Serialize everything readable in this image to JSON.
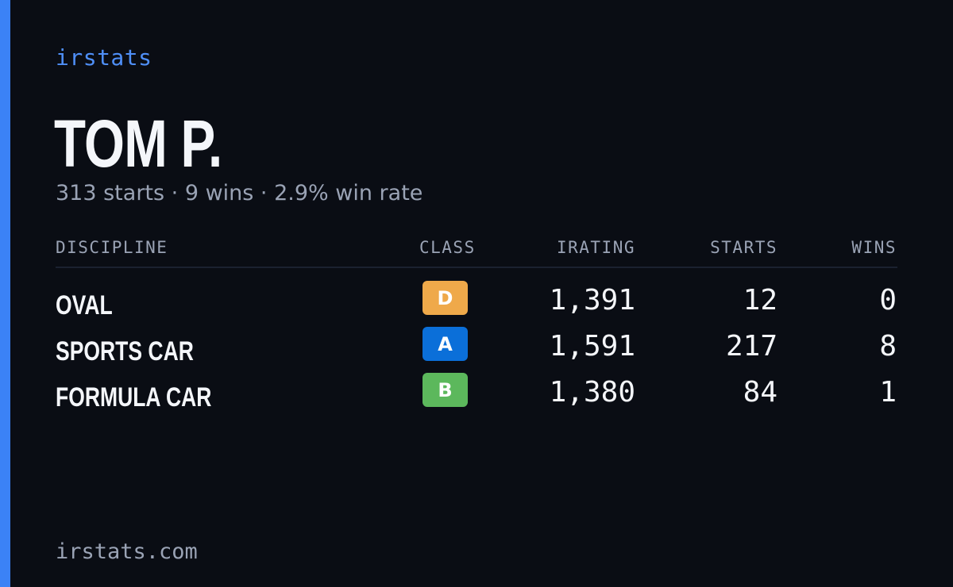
{
  "brand": "irstats",
  "driver": {
    "name": "TOM P.",
    "summary": "313 starts · 9 wins · 2.9% win rate"
  },
  "table": {
    "headers": {
      "discipline": "DISCIPLINE",
      "class": "CLASS",
      "irating": "IRATING",
      "starts": "STARTS",
      "wins": "WINS"
    },
    "rows": [
      {
        "discipline": "OVAL",
        "class": "D",
        "irating": "1,391",
        "starts": "12",
        "wins": "0"
      },
      {
        "discipline": "SPORTS CAR",
        "class": "A",
        "irating": "1,591",
        "starts": "217",
        "wins": "8"
      },
      {
        "discipline": "FORMULA CAR",
        "class": "B",
        "irating": "1,380",
        "starts": "84",
        "wins": "1"
      }
    ]
  },
  "footer": {
    "url": "irstats.com"
  },
  "colors": {
    "background": "#0a0d14",
    "accent": "#3b82f6",
    "class_d": "#efa94a",
    "class_a": "#0b6fd9",
    "class_b": "#5cb85c"
  }
}
